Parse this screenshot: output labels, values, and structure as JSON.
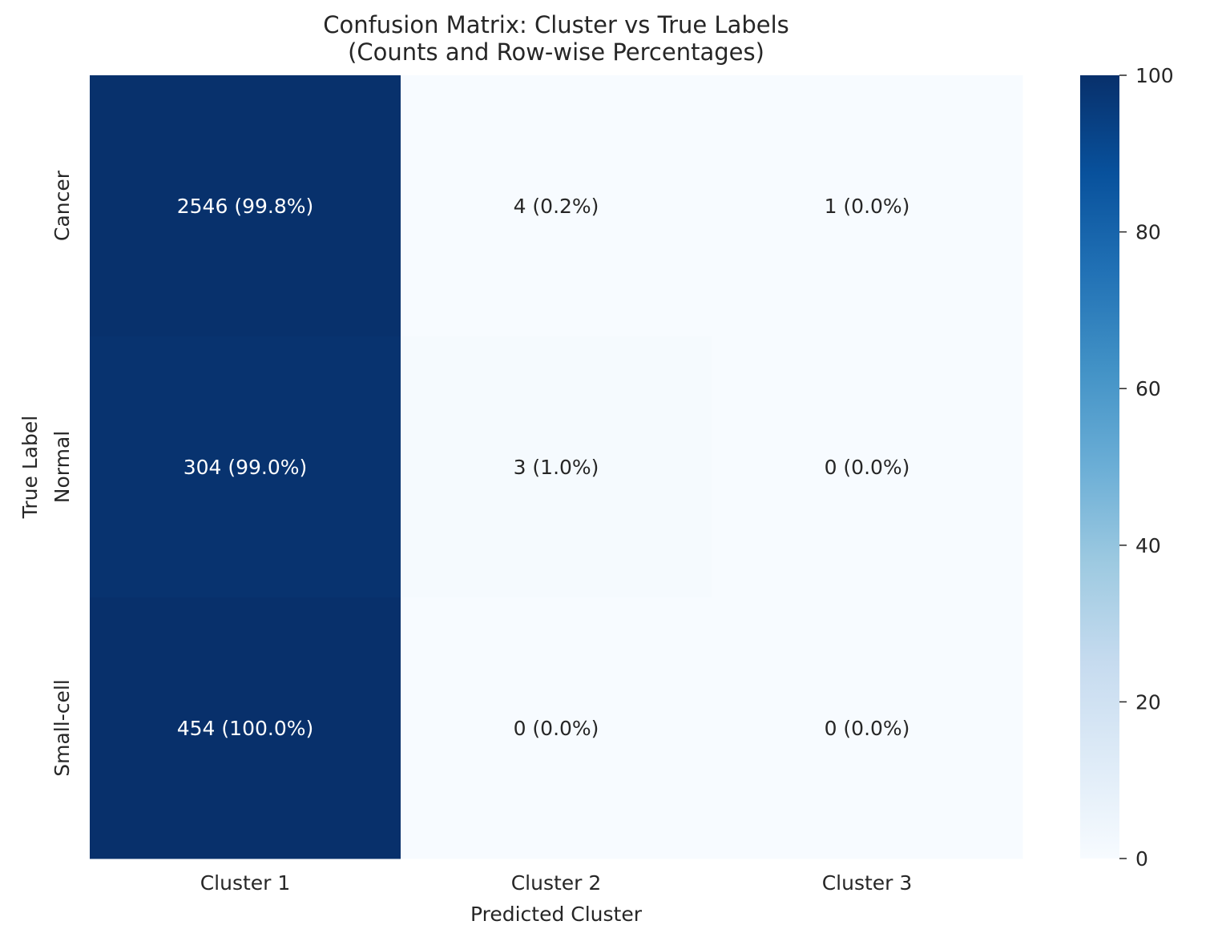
{
  "chart_data": {
    "type": "heatmap",
    "title": "Confusion Matrix: Cluster vs True Labels",
    "subtitle": "(Counts and Row-wise Percentages)",
    "xlabel": "Predicted Cluster",
    "ylabel": "True Label",
    "x_categories": [
      "Cluster 1",
      "Cluster 2",
      "Cluster 3"
    ],
    "y_categories": [
      "Cancer",
      "Normal",
      "Small-cell"
    ],
    "counts": [
      [
        2546,
        4,
        1
      ],
      [
        304,
        3,
        0
      ],
      [
        454,
        0,
        0
      ]
    ],
    "percentages": [
      [
        99.8,
        0.2,
        0.0
      ],
      [
        99.0,
        1.0,
        0.0
      ],
      [
        100.0,
        0.0,
        0.0
      ]
    ],
    "cell_labels": [
      [
        "2546 (99.8%)",
        "4 (0.2%)",
        "1 (0.0%)"
      ],
      [
        "304 (99.0%)",
        "3 (1.0%)",
        "0 (0.0%)"
      ],
      [
        "454 (100.0%)",
        "0 (0.0%)",
        "0 (0.0%)"
      ]
    ],
    "colorbar": {
      "range": [
        0,
        100
      ],
      "ticks": [
        0,
        20,
        40,
        60,
        80,
        100
      ],
      "colormap": "Blues",
      "colors": [
        "#f7fbff",
        "#deebf7",
        "#c6dbef",
        "#9ecae1",
        "#6baed6",
        "#4292c6",
        "#2171b5",
        "#08519c",
        "#08306b"
      ]
    },
    "grid": false
  }
}
